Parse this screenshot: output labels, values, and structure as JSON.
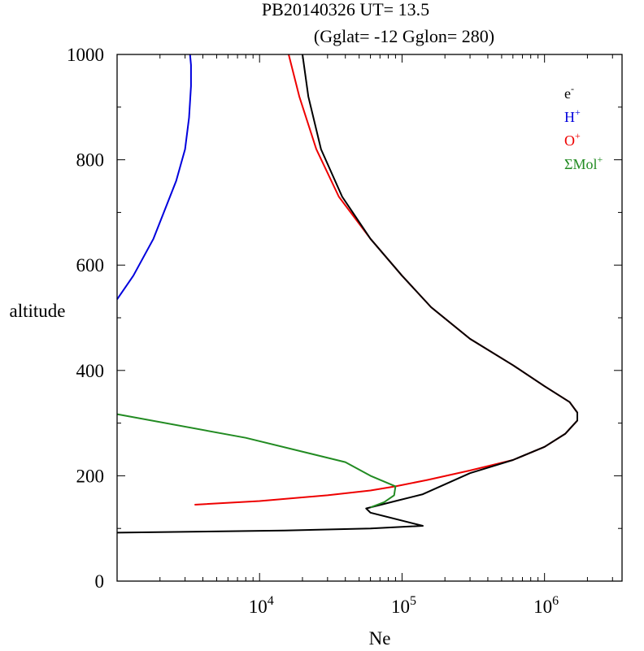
{
  "title": {
    "line1": "PB20140326   UT=  13.5",
    "line2": "(Gglat= -12   Gglon=  280)"
  },
  "chart_data": {
    "type": "line",
    "x_scale": "log",
    "xlabel": "Ne",
    "ylabel": "altitude",
    "xlim": [
      1000,
      3500000
    ],
    "ylim": [
      0,
      1000
    ],
    "x_ticks": [
      {
        "value": 10000,
        "base": "10",
        "exp": "4"
      },
      {
        "value": 100000,
        "base": "10",
        "exp": "5"
      },
      {
        "value": 1000000,
        "base": "10",
        "exp": "6"
      }
    ],
    "y_ticks": [
      {
        "value": 0,
        "label": "0"
      },
      {
        "value": 200,
        "label": "200"
      },
      {
        "value": 400,
        "label": "400"
      },
      {
        "value": 600,
        "label": "600"
      },
      {
        "value": 800,
        "label": "800"
      },
      {
        "value": 1000,
        "label": "1000"
      }
    ],
    "legend": {
      "position": "top-right",
      "entries": [
        {
          "base": "e",
          "sup": "-",
          "color": "#000000"
        },
        {
          "base": "H",
          "sup": "+",
          "color": "#0000dd"
        },
        {
          "base": "O",
          "sup": "+",
          "color": "#ee0000"
        },
        {
          "base": "ΣMol",
          "sup": "+",
          "color": "#228b22"
        }
      ]
    },
    "series": [
      {
        "color": "#ee0000",
        "x": [
          3500,
          10000,
          30000,
          60000,
          90000,
          150000,
          300000,
          600000,
          1000000,
          1400000,
          1700000,
          1700000,
          1500000,
          1000000,
          600000,
          300000,
          160000,
          100000,
          60000,
          36000,
          25000,
          19000,
          16000
        ],
        "y": [
          145,
          152,
          163,
          172,
          180,
          192,
          210,
          230,
          255,
          280,
          305,
          320,
          340,
          370,
          410,
          460,
          520,
          580,
          650,
          730,
          820,
          920,
          1000
        ]
      },
      {
        "color": "#000000",
        "x": [
          1000,
          15000,
          60000,
          140000,
          60000,
          56000,
          90000,
          140000,
          300000,
          600000,
          1000000,
          1400000,
          1700000,
          1700000,
          1500000,
          1000000,
          600000,
          300000,
          160000,
          100000,
          60000,
          38000,
          27000,
          22000,
          20000
        ],
        "y": [
          92,
          96,
          100,
          105,
          130,
          138,
          152,
          165,
          205,
          230,
          255,
          280,
          305,
          320,
          340,
          370,
          410,
          460,
          520,
          580,
          650,
          730,
          820,
          920,
          1000
        ]
      },
      {
        "color": "#0000dd",
        "x": [
          1000,
          1300,
          1800,
          2200,
          2600,
          3000,
          3200,
          3300,
          3300,
          3250
        ],
        "y": [
          535,
          580,
          650,
          710,
          760,
          820,
          880,
          940,
          980,
          1000
        ]
      },
      {
        "color": "#228b22",
        "x": [
          1000,
          8000,
          40000,
          60000,
          90000,
          88000,
          75000,
          60000
        ],
        "y": [
          317,
          272,
          226,
          200,
          180,
          163,
          150,
          140
        ]
      }
    ]
  }
}
